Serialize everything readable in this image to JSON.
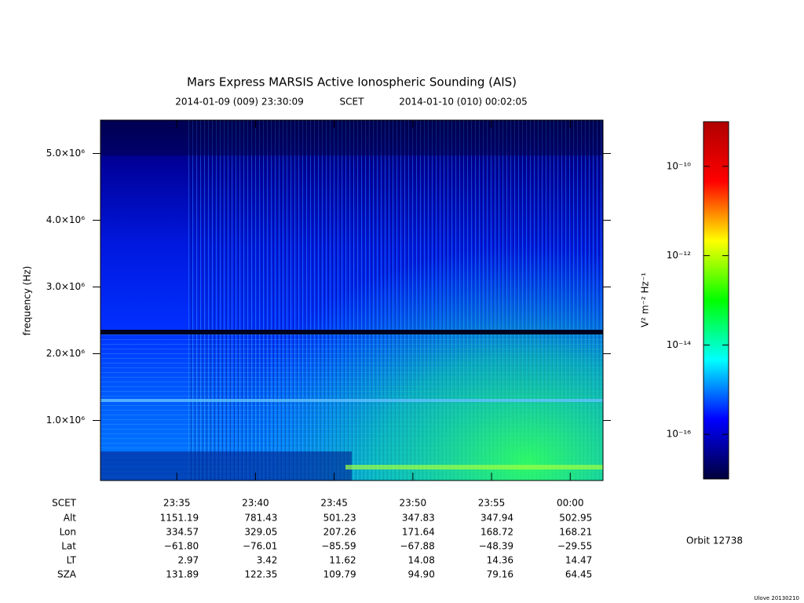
{
  "chart_data": {
    "type": "spectrogram",
    "title": "Mars Express MARSIS Active Ionospheric Sounding (AIS)",
    "subtitle": [
      "2014-01-09 (009) 23:30:09",
      "SCET",
      "2014-01-10 (010) 00:02:05"
    ],
    "ylabel": "frequency (Hz)",
    "ylim": [
      100000,
      5500000
    ],
    "yticks": [
      {
        "value": 1000000,
        "label": "1.0×10⁶"
      },
      {
        "value": 2000000,
        "label": "2.0×10⁶"
      },
      {
        "value": 3000000,
        "label": "3.0×10⁶"
      },
      {
        "value": 4000000,
        "label": "4.0×10⁶"
      },
      {
        "value": 5000000,
        "label": "5.0×10⁶"
      }
    ],
    "xlim": [
      "2014-01-09T23:30:09",
      "2014-01-10T00:02:05"
    ],
    "xticks": [
      {
        "value": "2014-01-09T23:35:00",
        "label": "23:35"
      },
      {
        "value": "2014-01-09T23:40:00",
        "label": "23:40"
      },
      {
        "value": "2014-01-09T23:45:00",
        "label": "23:45"
      },
      {
        "value": "2014-01-09T23:50:00",
        "label": "23:50"
      },
      {
        "value": "2014-01-09T23:55:00",
        "label": "23:55"
      },
      {
        "value": "2014-01-10T00:00:00",
        "label": "00:00"
      }
    ],
    "ephemeris": {
      "scet_label": "SCET",
      "rows": [
        {
          "name": "Alt",
          "values": [
            "1151.19",
            "781.43",
            "501.23",
            "347.83",
            "347.94",
            "502.95"
          ]
        },
        {
          "name": "Lon",
          "values": [
            "334.57",
            "329.05",
            "207.26",
            "171.64",
            "168.72",
            "168.21"
          ]
        },
        {
          "name": "Lat",
          "values": [
            "−61.80",
            "−76.01",
            "−85.59",
            "−67.88",
            "−48.39",
            "−29.55"
          ]
        },
        {
          "name": "LT",
          "values": [
            "2.97",
            "3.42",
            "11.62",
            "14.08",
            "14.36",
            "14.47"
          ]
        },
        {
          "name": "SZA",
          "values": [
            "131.89",
            "122.35",
            "109.79",
            "94.90",
            "79.16",
            "64.45"
          ]
        }
      ]
    },
    "colorbar": {
      "label": "V² m⁻² Hz⁻¹",
      "log": true,
      "clim": [
        1e-17,
        1e-09
      ],
      "ticks": [
        {
          "value": 1e-10,
          "label": "10⁻¹⁰"
        },
        {
          "value": 1e-12,
          "label": "10⁻¹²"
        },
        {
          "value": 1e-14,
          "label": "10⁻¹⁴"
        },
        {
          "value": 1e-16,
          "label": "10⁻¹⁶"
        }
      ],
      "colormap": [
        "#00003a",
        "#0000ff",
        "#00ffff",
        "#00ff00",
        "#ffff00",
        "#ff0000",
        "#b00000"
      ]
    },
    "orbit": "Orbit 12738",
    "footer": "Ulove 20130210"
  }
}
